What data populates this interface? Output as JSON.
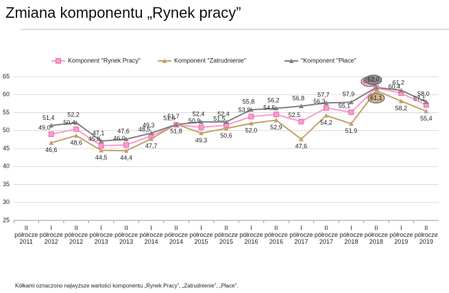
{
  "chart_data": {
    "type": "line",
    "title": "Zmiana komponentu „Rynek pracy”",
    "footnote": "Kółkami oznaczono najwyższe wartości komponentu „Rynek Pracy”, „Zatrudnienie”, „Płace”.",
    "categories": [
      [
        "II",
        "półrocze",
        "2011"
      ],
      [
        "I",
        "półrocze",
        "2012"
      ],
      [
        "II",
        "półrocze",
        "2012"
      ],
      [
        "I",
        "półrocze",
        "2013"
      ],
      [
        "II",
        "półrocze",
        "2013"
      ],
      [
        "I",
        "półrocze",
        "2014"
      ],
      [
        "II",
        "półrocze",
        "2014"
      ],
      [
        "I",
        "półrocze",
        "2015"
      ],
      [
        "II",
        "półrocze",
        "2015"
      ],
      [
        "I",
        "półrocze",
        "2016"
      ],
      [
        "II",
        "półrocze",
        "2016"
      ],
      [
        "I",
        "półrocze",
        "2017"
      ],
      [
        "II",
        "półrocze",
        "2017"
      ],
      [
        "I",
        "półrocze",
        "2018"
      ],
      [
        "II",
        "półrocze",
        "2018"
      ],
      [
        "I",
        "półrocze",
        "2019"
      ],
      [
        "II",
        "półrocze",
        "2019"
      ]
    ],
    "series": [
      {
        "name": "Komponent \"Rynek Pracy\"",
        "color": "#ff99cc",
        "marker": "square",
        "values": [
          null,
          49.0,
          50.4,
          45.8,
          46.0,
          48.5,
          51.6,
          50.9,
          51.5,
          53.9,
          54.5,
          52.5,
          56.3,
          55.1,
          61.9,
          60.4,
          57.1
        ],
        "value_labels": [
          null,
          "49,0",
          "50,4",
          "45,8",
          "46,0",
          "48,5",
          "51,6",
          "50,9",
          "51,5",
          "53,9",
          "54,5",
          "52,5",
          "56,3",
          "55,1",
          "61,9",
          "60,4",
          "57,1"
        ]
      },
      {
        "name": "Komponent \"Zatrudnienie\"",
        "color": "#c4a16a",
        "marker": "triangle",
        "values": [
          null,
          46.6,
          48.6,
          44.5,
          44.4,
          47.7,
          51.8,
          49.3,
          50.6,
          52.0,
          52.9,
          47.6,
          54.2,
          51.9,
          61.1,
          58.2,
          55.4
        ],
        "value_labels": [
          null,
          "46,6",
          "48,6",
          "44,5",
          "44,4",
          "47,7",
          "51,8",
          "49,3",
          "50,6",
          "52,0",
          "52,9",
          "47,6",
          "54,2",
          "51,9",
          "61,1",
          "58,2",
          "55,4"
        ]
      },
      {
        "name": "\"Komponent \"Płace\"",
        "color": "#808080",
        "marker": "triangle",
        "values": [
          null,
          51.4,
          52.2,
          47.1,
          47.6,
          49.3,
          51.7,
          52.4,
          52.4,
          55.8,
          56.2,
          56.8,
          57.7,
          57.9,
          62.0,
          61.2,
          58.0
        ],
        "value_labels": [
          null,
          "51,4",
          "52,2",
          "47,1",
          "47,6",
          "49,3",
          "51,7",
          "52,4",
          "52,4",
          "55,8",
          "56,2",
          "56,8",
          "57,7",
          "57,9",
          "62,0",
          "61,2",
          "58,0"
        ]
      }
    ],
    "ylim": [
      25,
      65
    ],
    "yticks": [
      25,
      30,
      35,
      40,
      45,
      50,
      55,
      60,
      65
    ],
    "grid": true
  }
}
